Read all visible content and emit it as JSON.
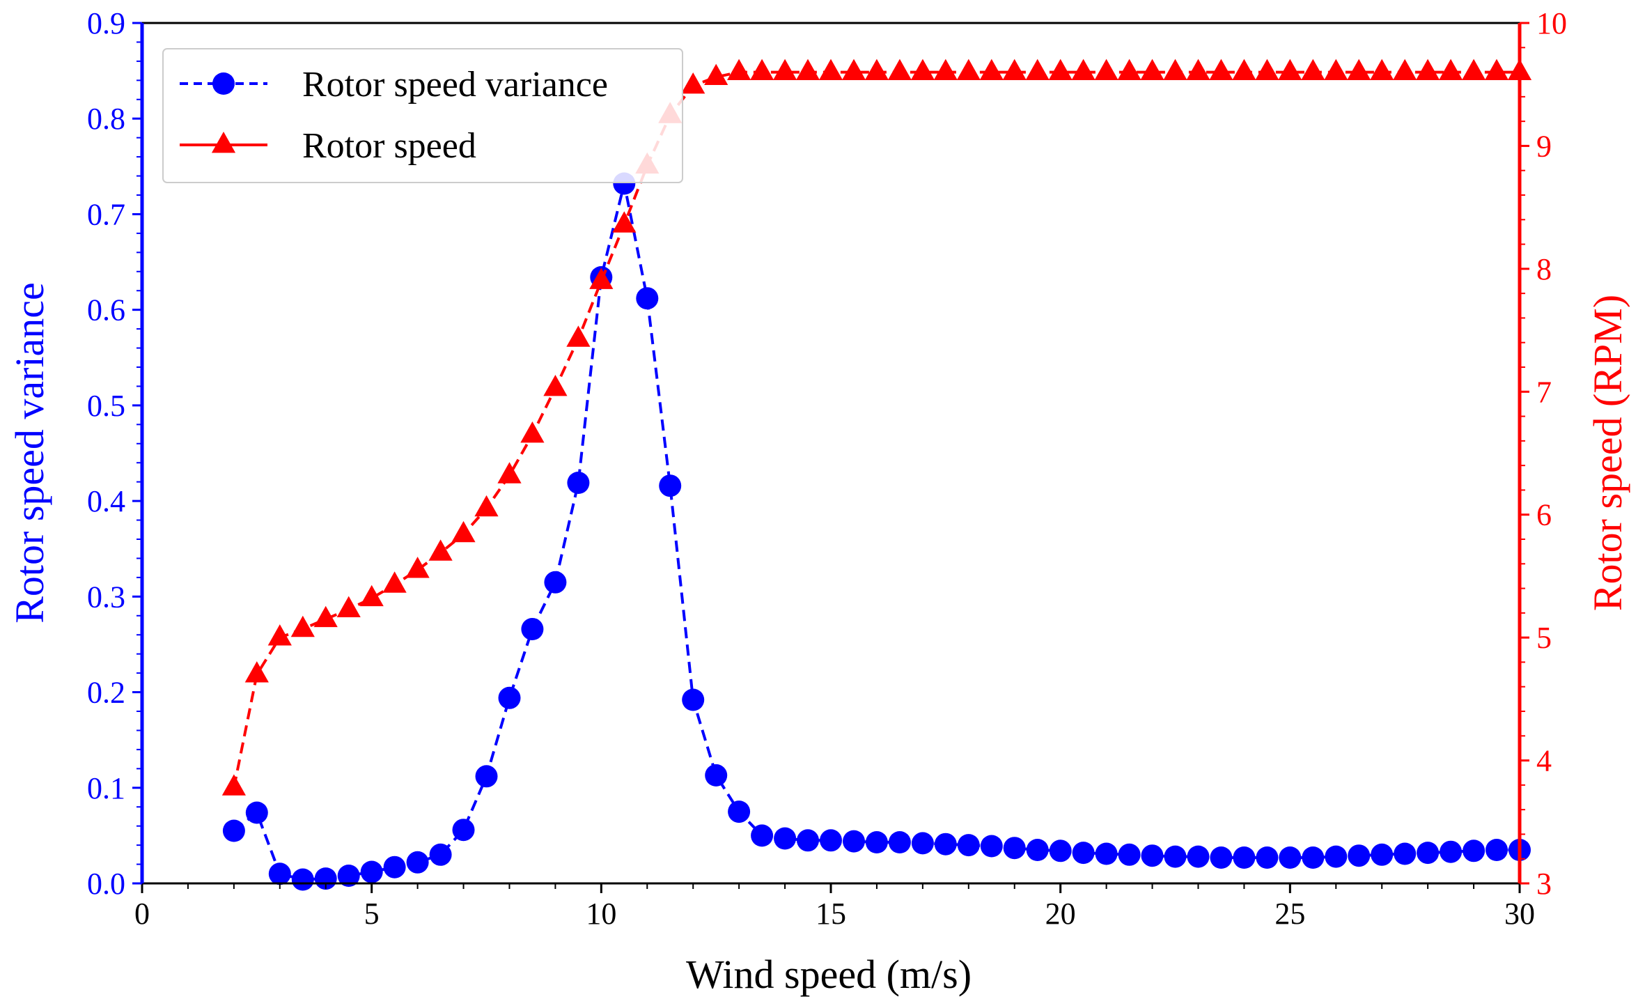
{
  "chart_data": {
    "type": "line",
    "xlabel": "Wind speed (m/s)",
    "ylabel_left": "Rotor speed variance",
    "ylabel_right": "Rotor speed (RPM)",
    "xlim": [
      0,
      30
    ],
    "ylim_left": [
      0,
      0.9
    ],
    "ylim_right": [
      3,
      10
    ],
    "xticks": [
      "0",
      "5",
      "10",
      "15",
      "20",
      "25",
      "30"
    ],
    "yticks_left": [
      "0.0",
      "0.1",
      "0.2",
      "0.3",
      "0.4",
      "0.5",
      "0.6",
      "0.7",
      "0.8",
      "0.9"
    ],
    "yticks_right": [
      "3",
      "4",
      "5",
      "6",
      "7",
      "8",
      "9",
      "10"
    ],
    "grid": false,
    "legend_position": "top-left",
    "x": [
      2,
      2.5,
      3,
      3.5,
      4,
      4.5,
      5,
      5.5,
      6,
      6.5,
      7,
      7.5,
      8,
      8.5,
      9,
      9.5,
      10,
      10.5,
      11,
      11.5,
      12,
      12.5,
      13,
      13.5,
      14,
      14.5,
      15,
      15.5,
      16,
      16.5,
      17,
      17.5,
      18,
      18.5,
      19,
      19.5,
      20,
      20.5,
      21,
      21.5,
      22,
      22.5,
      23,
      23.5,
      24,
      24.5,
      25,
      25.5,
      26,
      26.5,
      27,
      27.5,
      28,
      28.5,
      29,
      29.5,
      30
    ],
    "series": [
      {
        "name": "Rotor speed variance",
        "axis": "left",
        "color": "#0000ff",
        "marker": "circle",
        "line_style": "dashed",
        "values": [
          0.055,
          0.074,
          0.01,
          0.004,
          0.005,
          0.008,
          0.012,
          0.017,
          0.022,
          0.03,
          0.056,
          0.112,
          0.194,
          0.266,
          0.315,
          0.419,
          0.634,
          0.732,
          0.612,
          0.416,
          0.192,
          0.113,
          0.075,
          0.05,
          0.047,
          0.045,
          0.045,
          0.044,
          0.043,
          0.043,
          0.042,
          0.041,
          0.04,
          0.039,
          0.037,
          0.035,
          0.034,
          0.032,
          0.031,
          0.03,
          0.029,
          0.028,
          0.028,
          0.027,
          0.027,
          0.027,
          0.027,
          0.027,
          0.028,
          0.029,
          0.03,
          0.031,
          0.032,
          0.033,
          0.034,
          0.035,
          0.035
        ]
      },
      {
        "name": "Rotor speed",
        "axis": "right",
        "color": "#ff0000",
        "marker": "triangle",
        "line_style": "dashed",
        "values": [
          3.78,
          4.7,
          5.0,
          5.07,
          5.15,
          5.23,
          5.32,
          5.43,
          5.55,
          5.69,
          5.84,
          6.05,
          6.32,
          6.65,
          7.03,
          7.43,
          7.9,
          8.36,
          8.84,
          9.25,
          9.49,
          9.56,
          9.6,
          9.6,
          9.6,
          9.6,
          9.6,
          9.6,
          9.6,
          9.6,
          9.6,
          9.6,
          9.6,
          9.6,
          9.6,
          9.6,
          9.6,
          9.6,
          9.6,
          9.6,
          9.6,
          9.6,
          9.6,
          9.6,
          9.6,
          9.6,
          9.6,
          9.6,
          9.6,
          9.6,
          9.6,
          9.6,
          9.6,
          9.6,
          9.6,
          9.6,
          9.6
        ]
      }
    ]
  }
}
